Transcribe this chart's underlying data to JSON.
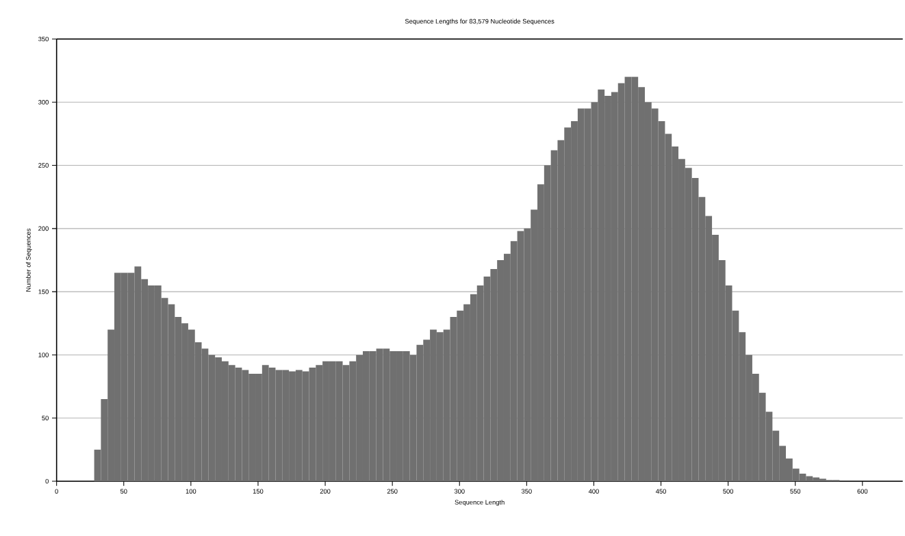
{
  "chart_data": {
    "type": "histogram",
    "title": "Sequence Lengths for 83,579 Nucleotide Sequences",
    "xlabel": "Sequence Length",
    "ylabel": "Number of Sequences",
    "color": "#707070",
    "grid": "y",
    "xlim": [
      0,
      630
    ],
    "ylim": [
      0,
      350
    ],
    "xticks": [
      0,
      50,
      100,
      150,
      200,
      250,
      300,
      350,
      400,
      450,
      500,
      550,
      600
    ],
    "yticks": [
      0,
      50,
      100,
      150,
      200,
      250,
      300,
      350
    ],
    "bins": [
      28,
      33,
      38,
      43,
      48,
      53,
      58,
      63,
      68,
      73,
      78,
      83,
      88,
      93,
      98,
      103,
      108,
      113,
      118,
      123,
      128,
      133,
      138,
      143,
      148,
      153,
      158,
      163,
      168,
      173,
      178,
      183,
      188,
      193,
      198,
      203,
      208,
      213,
      218,
      223,
      228,
      233,
      238,
      243,
      248,
      253,
      258,
      263,
      268,
      273,
      278,
      283,
      288,
      293,
      298,
      303,
      308,
      313,
      318,
      323,
      328,
      333,
      338,
      343,
      348,
      353,
      358,
      363,
      368,
      373,
      378,
      383,
      388,
      393,
      398,
      403,
      408,
      413,
      418,
      423,
      428,
      433,
      438,
      443,
      448,
      453,
      458,
      463,
      468,
      473,
      478,
      483,
      488,
      493,
      498,
      503,
      508,
      513,
      518,
      523,
      528,
      533,
      538,
      543,
      548,
      553,
      558,
      563,
      568,
      573,
      578,
      583
    ],
    "values": [
      25,
      65,
      120,
      165,
      165,
      165,
      170,
      160,
      155,
      155,
      145,
      140,
      130,
      125,
      120,
      110,
      105,
      100,
      98,
      95,
      92,
      90,
      88,
      85,
      85,
      92,
      90,
      88,
      88,
      87,
      88,
      87,
      90,
      92,
      95,
      95,
      95,
      92,
      95,
      100,
      103,
      103,
      105,
      105,
      103,
      103,
      103,
      100,
      108,
      112,
      120,
      118,
      120,
      130,
      135,
      140,
      148,
      155,
      162,
      168,
      175,
      180,
      190,
      198,
      200,
      215,
      235,
      250,
      262,
      270,
      280,
      285,
      295,
      295,
      300,
      310,
      305,
      308,
      315,
      320,
      320,
      312,
      300,
      295,
      285,
      275,
      265,
      255,
      248,
      240,
      225,
      210,
      195,
      175,
      155,
      135,
      118,
      100,
      85,
      70,
      55,
      40,
      28,
      18,
      10,
      6,
      4,
      3,
      2,
      1,
      1
    ]
  }
}
